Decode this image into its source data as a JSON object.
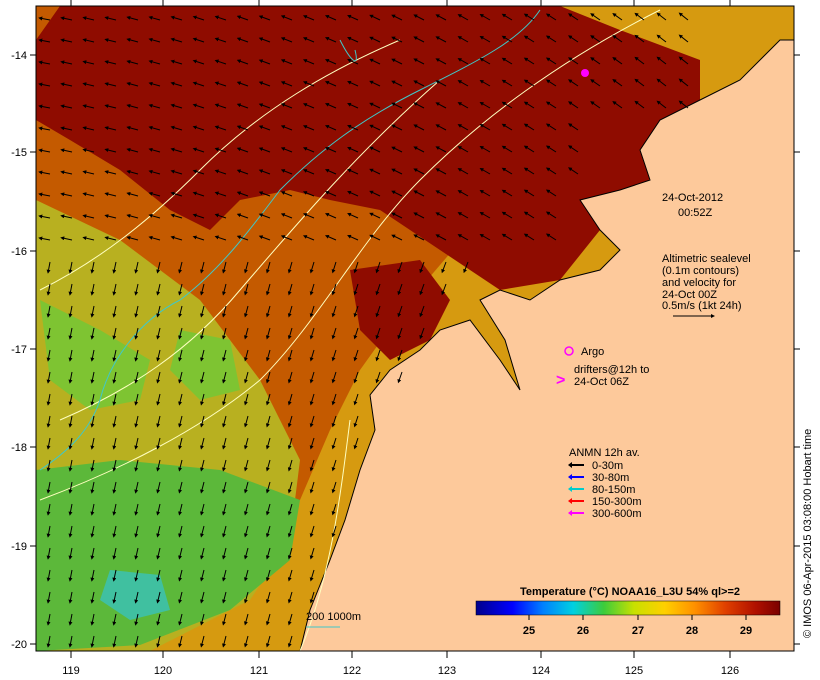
{
  "map": {
    "timestamp": {
      "date": "24-Oct-2012",
      "time": "00:52Z"
    },
    "altimetry_note": [
      "Altimetric sealevel",
      "(0.1m contours)",
      "and velocity for",
      "24-Oct 00Z",
      "0.5m/s (1kt 24h)"
    ],
    "argo_label": "Argo",
    "drifters_label": [
      "drifters@12h to",
      "24-Oct 06Z"
    ],
    "anmn_legend": {
      "title": "ANMN 12h av.",
      "items": [
        {
          "label": "0-30m",
          "color": "#000000"
        },
        {
          "label": "30-80m",
          "color": "#0000ff"
        },
        {
          "label": "80-150m",
          "color": "#00cccc"
        },
        {
          "label": "150-300m",
          "color": "#ff0000"
        },
        {
          "label": "300-600m",
          "color": "#ff00ff"
        }
      ]
    },
    "scale_bar_label": "200  1000m",
    "colorbar": {
      "title": "Temperature (°C) NOAA16_L3U 54% ql>=2",
      "ticks": [
        "25",
        "26",
        "27",
        "28",
        "29"
      ]
    },
    "credit": "© IMOS 06-Apr-2015 03:08:00 Hobart time",
    "x_axis": {
      "ticks": [
        "119",
        "120",
        "121",
        "122",
        "123",
        "124",
        "125",
        "126"
      ]
    },
    "y_axis": {
      "ticks": [
        "-14",
        "-15",
        "-16",
        "-17",
        "-18",
        "-19",
        "-20"
      ]
    },
    "colors": {
      "land": "#fdc99b",
      "hot": "#8f0c00",
      "warm": "#c44a00",
      "mid": "#d98a10",
      "cool": "#c8c01e",
      "cooler": "#5fbf3a",
      "sea_label": "#ff00ff"
    }
  }
}
